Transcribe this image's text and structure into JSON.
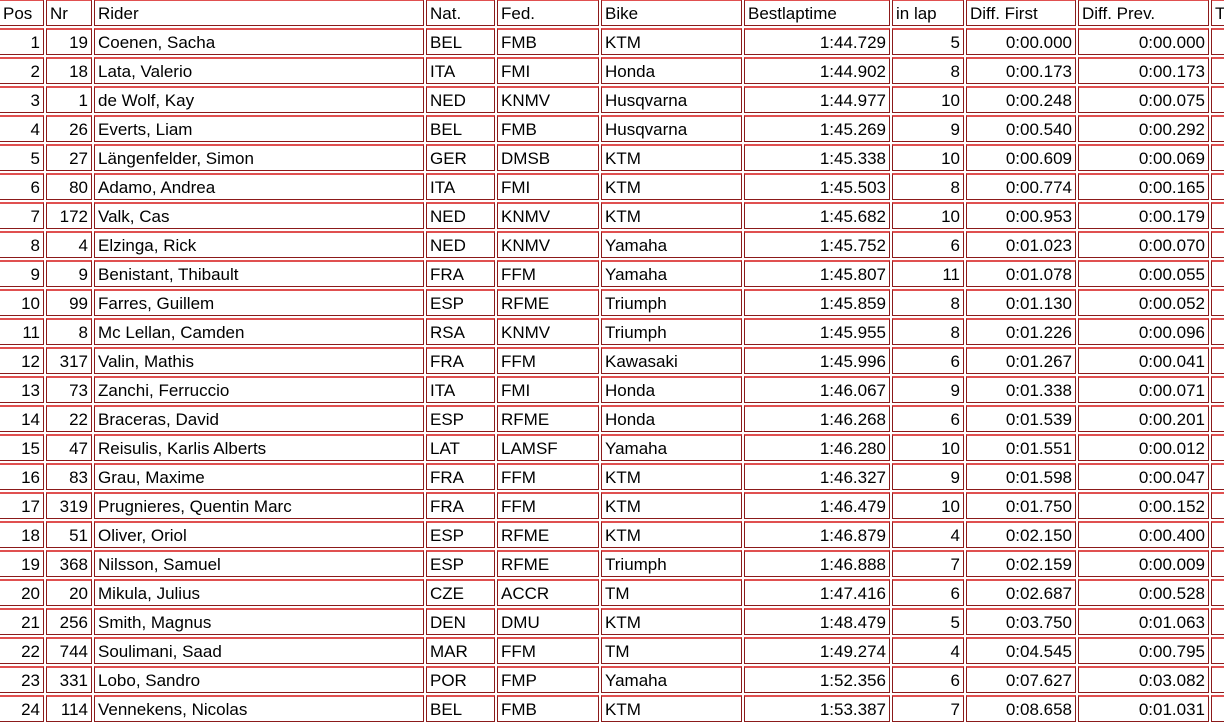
{
  "colors": {
    "border_dark": "#8b1a1a",
    "border_bright": "#e05050",
    "text": "#000000",
    "background": "#ffffff"
  },
  "table": {
    "columns": [
      {
        "key": "pos",
        "label": "Pos",
        "align": "right"
      },
      {
        "key": "nr",
        "label": "Nr",
        "align": "right"
      },
      {
        "key": "rider",
        "label": "Rider",
        "align": "left"
      },
      {
        "key": "nat",
        "label": "Nat.",
        "align": "left"
      },
      {
        "key": "fed",
        "label": "Fed.",
        "align": "left"
      },
      {
        "key": "bike",
        "label": "Bike",
        "align": "left"
      },
      {
        "key": "bestlap",
        "label": "Bestlaptime",
        "align": "right"
      },
      {
        "key": "inlap",
        "label": "in lap",
        "align": "right"
      },
      {
        "key": "diff_first",
        "label": "Diff. First",
        "align": "right"
      },
      {
        "key": "diff_prev",
        "label": "Diff. Prev.",
        "align": "right"
      },
      {
        "key": "t_partial",
        "label": "T",
        "align": "left"
      }
    ],
    "rows": [
      {
        "pos": "1",
        "nr": "19",
        "rider": "Coenen, Sacha",
        "nat": "BEL",
        "fed": "FMB",
        "bike": "KTM",
        "bestlap": "1:44.729",
        "inlap": "5",
        "diff_first": "0:00.000",
        "diff_prev": "0:00.000",
        "t_partial": ""
      },
      {
        "pos": "2",
        "nr": "18",
        "rider": "Lata, Valerio",
        "nat": "ITA",
        "fed": "FMI",
        "bike": "Honda",
        "bestlap": "1:44.902",
        "inlap": "8",
        "diff_first": "0:00.173",
        "diff_prev": "0:00.173",
        "t_partial": ""
      },
      {
        "pos": "3",
        "nr": "1",
        "rider": "de Wolf, Kay",
        "nat": "NED",
        "fed": "KNMV",
        "bike": "Husqvarna",
        "bestlap": "1:44.977",
        "inlap": "10",
        "diff_first": "0:00.248",
        "diff_prev": "0:00.075",
        "t_partial": ""
      },
      {
        "pos": "4",
        "nr": "26",
        "rider": "Everts, Liam",
        "nat": "BEL",
        "fed": "FMB",
        "bike": "Husqvarna",
        "bestlap": "1:45.269",
        "inlap": "9",
        "diff_first": "0:00.540",
        "diff_prev": "0:00.292",
        "t_partial": ""
      },
      {
        "pos": "5",
        "nr": "27",
        "rider": "Längenfelder, Simon",
        "nat": "GER",
        "fed": "DMSB",
        "bike": "KTM",
        "bestlap": "1:45.338",
        "inlap": "10",
        "diff_first": "0:00.609",
        "diff_prev": "0:00.069",
        "t_partial": ""
      },
      {
        "pos": "6",
        "nr": "80",
        "rider": "Adamo, Andrea",
        "nat": "ITA",
        "fed": "FMI",
        "bike": "KTM",
        "bestlap": "1:45.503",
        "inlap": "8",
        "diff_first": "0:00.774",
        "diff_prev": "0:00.165",
        "t_partial": ""
      },
      {
        "pos": "7",
        "nr": "172",
        "rider": "Valk, Cas",
        "nat": "NED",
        "fed": "KNMV",
        "bike": "KTM",
        "bestlap": "1:45.682",
        "inlap": "10",
        "diff_first": "0:00.953",
        "diff_prev": "0:00.179",
        "t_partial": ""
      },
      {
        "pos": "8",
        "nr": "4",
        "rider": "Elzinga, Rick",
        "nat": "NED",
        "fed": "KNMV",
        "bike": "Yamaha",
        "bestlap": "1:45.752",
        "inlap": "6",
        "diff_first": "0:01.023",
        "diff_prev": "0:00.070",
        "t_partial": ""
      },
      {
        "pos": "9",
        "nr": "9",
        "rider": "Benistant, Thibault",
        "nat": "FRA",
        "fed": "FFM",
        "bike": "Yamaha",
        "bestlap": "1:45.807",
        "inlap": "11",
        "diff_first": "0:01.078",
        "diff_prev": "0:00.055",
        "t_partial": ""
      },
      {
        "pos": "10",
        "nr": "99",
        "rider": "Farres, Guillem",
        "nat": "ESP",
        "fed": "RFME",
        "bike": "Triumph",
        "bestlap": "1:45.859",
        "inlap": "8",
        "diff_first": "0:01.130",
        "diff_prev": "0:00.052",
        "t_partial": ""
      },
      {
        "pos": "11",
        "nr": "8",
        "rider": "Mc Lellan, Camden",
        "nat": "RSA",
        "fed": "KNMV",
        "bike": "Triumph",
        "bestlap": "1:45.955",
        "inlap": "8",
        "diff_first": "0:01.226",
        "diff_prev": "0:00.096",
        "t_partial": ""
      },
      {
        "pos": "12",
        "nr": "317",
        "rider": "Valin, Mathis",
        "nat": "FRA",
        "fed": "FFM",
        "bike": "Kawasaki",
        "bestlap": "1:45.996",
        "inlap": "6",
        "diff_first": "0:01.267",
        "diff_prev": "0:00.041",
        "t_partial": ""
      },
      {
        "pos": "13",
        "nr": "73",
        "rider": "Zanchi, Ferruccio",
        "nat": "ITA",
        "fed": "FMI",
        "bike": "Honda",
        "bestlap": "1:46.067",
        "inlap": "9",
        "diff_first": "0:01.338",
        "diff_prev": "0:00.071",
        "t_partial": ""
      },
      {
        "pos": "14",
        "nr": "22",
        "rider": "Braceras, David",
        "nat": "ESP",
        "fed": "RFME",
        "bike": "Honda",
        "bestlap": "1:46.268",
        "inlap": "6",
        "diff_first": "0:01.539",
        "diff_prev": "0:00.201",
        "t_partial": ""
      },
      {
        "pos": "15",
        "nr": "47",
        "rider": "Reisulis, Karlis Alberts",
        "nat": "LAT",
        "fed": "LAMSF",
        "bike": "Yamaha",
        "bestlap": "1:46.280",
        "inlap": "10",
        "diff_first": "0:01.551",
        "diff_prev": "0:00.012",
        "t_partial": ""
      },
      {
        "pos": "16",
        "nr": "83",
        "rider": "Grau, Maxime",
        "nat": "FRA",
        "fed": "FFM",
        "bike": "KTM",
        "bestlap": "1:46.327",
        "inlap": "9",
        "diff_first": "0:01.598",
        "diff_prev": "0:00.047",
        "t_partial": ""
      },
      {
        "pos": "17",
        "nr": "319",
        "rider": "Prugnieres, Quentin Marc",
        "nat": "FRA",
        "fed": "FFM",
        "bike": "KTM",
        "bestlap": "1:46.479",
        "inlap": "10",
        "diff_first": "0:01.750",
        "diff_prev": "0:00.152",
        "t_partial": ""
      },
      {
        "pos": "18",
        "nr": "51",
        "rider": "Oliver, Oriol",
        "nat": "ESP",
        "fed": "RFME",
        "bike": "KTM",
        "bestlap": "1:46.879",
        "inlap": "4",
        "diff_first": "0:02.150",
        "diff_prev": "0:00.400",
        "t_partial": ""
      },
      {
        "pos": "19",
        "nr": "368",
        "rider": "Nilsson, Samuel",
        "nat": "ESP",
        "fed": "RFME",
        "bike": "Triumph",
        "bestlap": "1:46.888",
        "inlap": "7",
        "diff_first": "0:02.159",
        "diff_prev": "0:00.009",
        "t_partial": ""
      },
      {
        "pos": "20",
        "nr": "20",
        "rider": "Mikula, Julius",
        "nat": "CZE",
        "fed": "ACCR",
        "bike": "TM",
        "bestlap": "1:47.416",
        "inlap": "6",
        "diff_first": "0:02.687",
        "diff_prev": "0:00.528",
        "t_partial": ""
      },
      {
        "pos": "21",
        "nr": "256",
        "rider": "Smith, Magnus",
        "nat": "DEN",
        "fed": "DMU",
        "bike": "KTM",
        "bestlap": "1:48.479",
        "inlap": "5",
        "diff_first": "0:03.750",
        "diff_prev": "0:01.063",
        "t_partial": ""
      },
      {
        "pos": "22",
        "nr": "744",
        "rider": "Soulimani, Saad",
        "nat": "MAR",
        "fed": "FFM",
        "bike": "TM",
        "bestlap": "1:49.274",
        "inlap": "4",
        "diff_first": "0:04.545",
        "diff_prev": "0:00.795",
        "t_partial": ""
      },
      {
        "pos": "23",
        "nr": "331",
        "rider": "Lobo, Sandro",
        "nat": "POR",
        "fed": "FMP",
        "bike": "Yamaha",
        "bestlap": "1:52.356",
        "inlap": "6",
        "diff_first": "0:07.627",
        "diff_prev": "0:03.082",
        "t_partial": ""
      },
      {
        "pos": "24",
        "nr": "114",
        "rider": "Vennekens, Nicolas",
        "nat": "BEL",
        "fed": "FMB",
        "bike": "KTM",
        "bestlap": "1:53.387",
        "inlap": "7",
        "diff_first": "0:08.658",
        "diff_prev": "0:01.031",
        "t_partial": ""
      }
    ]
  }
}
